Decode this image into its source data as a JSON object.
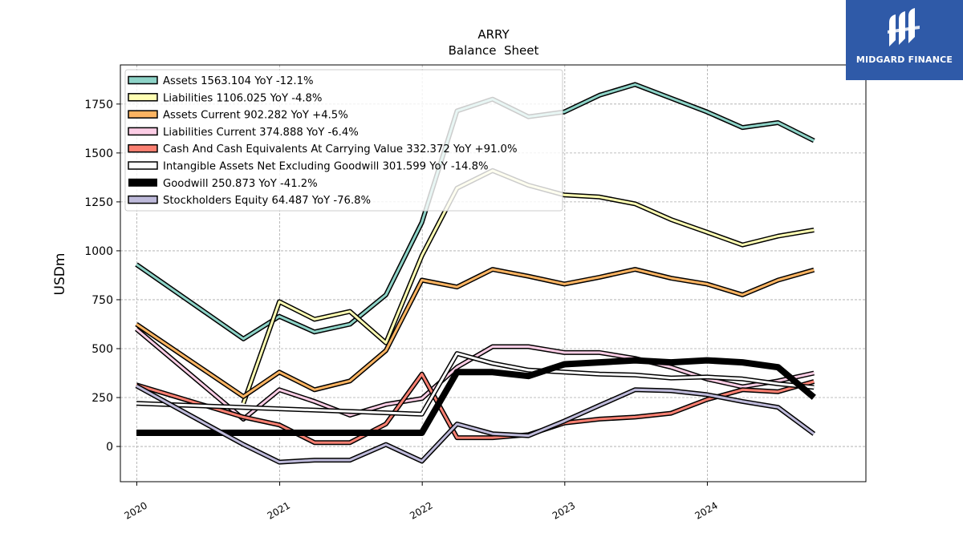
{
  "chart_data": {
    "type": "line",
    "title": "ARRY",
    "subtitle": "Balance  Sheet",
    "ylabel": "USDm",
    "xlabel": "",
    "xlim": [
      "2019-11-20",
      "2025-02-10"
    ],
    "ylim": [
      -180,
      1950
    ],
    "y_ticks": [
      0,
      250,
      500,
      750,
      1000,
      1250,
      1500,
      1750
    ],
    "x_ticks": [
      {
        "date": "2020-01-01",
        "label": "2020"
      },
      {
        "date": "2021-01-01",
        "label": "2021"
      },
      {
        "date": "2022-01-01",
        "label": "2022"
      },
      {
        "date": "2023-01-01",
        "label": "2023"
      },
      {
        "date": "2024-01-01",
        "label": "2024"
      }
    ],
    "grid": true,
    "legend_position": "top-left",
    "series": [
      {
        "name": "Assets",
        "legend": "Assets  1563.104 YoY -12.1%",
        "color": "#8dd3c7",
        "width": 3,
        "points": [
          [
            "2019-12-31",
            930
          ],
          [
            "2020-09-30",
            550
          ],
          [
            "2020-12-31",
            665
          ],
          [
            "2021-03-31",
            585
          ],
          [
            "2021-06-30",
            625
          ],
          [
            "2021-09-30",
            775
          ],
          [
            "2021-12-31",
            1145
          ],
          [
            "2022-03-31",
            1715
          ],
          [
            "2022-06-30",
            1775
          ],
          [
            "2022-09-30",
            1685
          ],
          [
            "2022-12-31",
            1710
          ],
          [
            "2023-03-31",
            1795
          ],
          [
            "2023-06-30",
            1850
          ],
          [
            "2023-09-30",
            1780
          ],
          [
            "2023-12-31",
            1710
          ],
          [
            "2024-03-31",
            1630
          ],
          [
            "2024-06-30",
            1655
          ],
          [
            "2024-09-30",
            1563
          ]
        ]
      },
      {
        "name": "Liabilities",
        "legend": "Liabilities  1106.025 YoY -4.8%",
        "color": "#ffffb3",
        "width": 3,
        "points": [
          [
            "2020-09-30",
            220
          ],
          [
            "2020-12-31",
            740
          ],
          [
            "2021-03-31",
            650
          ],
          [
            "2021-06-30",
            690
          ],
          [
            "2021-09-30",
            530
          ],
          [
            "2021-12-31",
            975
          ],
          [
            "2022-03-31",
            1320
          ],
          [
            "2022-06-30",
            1410
          ],
          [
            "2022-09-30",
            1335
          ],
          [
            "2022-12-31",
            1285
          ],
          [
            "2023-03-31",
            1275
          ],
          [
            "2023-06-30",
            1240
          ],
          [
            "2023-09-30",
            1160
          ],
          [
            "2023-12-31",
            1095
          ],
          [
            "2024-03-31",
            1030
          ],
          [
            "2024-06-30",
            1075
          ],
          [
            "2024-09-30",
            1106
          ]
        ]
      },
      {
        "name": "Assets Current",
        "legend": "Assets Current  902.282 YoY +4.5%",
        "color": "#fdb462",
        "width": 3,
        "points": [
          [
            "2019-12-31",
            625
          ],
          [
            "2020-09-30",
            255
          ],
          [
            "2020-12-31",
            380
          ],
          [
            "2021-03-31",
            290
          ],
          [
            "2021-06-30",
            335
          ],
          [
            "2021-09-30",
            490
          ],
          [
            "2021-12-31",
            850
          ],
          [
            "2022-03-31",
            815
          ],
          [
            "2022-06-30",
            905
          ],
          [
            "2022-09-30",
            870
          ],
          [
            "2022-12-31",
            830
          ],
          [
            "2023-03-31",
            865
          ],
          [
            "2023-06-30",
            905
          ],
          [
            "2023-09-30",
            860
          ],
          [
            "2023-12-31",
            830
          ],
          [
            "2024-03-31",
            775
          ],
          [
            "2024-06-30",
            850
          ],
          [
            "2024-09-30",
            902
          ]
        ]
      },
      {
        "name": "Liabilities Current",
        "legend": "Liabilities Current  374.888 YoY -6.4%",
        "color": "#fccde5",
        "width": 3,
        "points": [
          [
            "2019-12-31",
            600
          ],
          [
            "2020-09-30",
            140
          ],
          [
            "2020-12-31",
            290
          ],
          [
            "2021-03-31",
            230
          ],
          [
            "2021-06-30",
            160
          ],
          [
            "2021-09-30",
            215
          ],
          [
            "2021-12-31",
            245
          ],
          [
            "2022-03-31",
            405
          ],
          [
            "2022-06-30",
            510
          ],
          [
            "2022-09-30",
            510
          ],
          [
            "2022-12-31",
            480
          ],
          [
            "2023-03-31",
            480
          ],
          [
            "2023-06-30",
            450
          ],
          [
            "2023-09-30",
            405
          ],
          [
            "2023-12-31",
            345
          ],
          [
            "2024-03-31",
            305
          ],
          [
            "2024-06-30",
            335
          ],
          [
            "2024-09-30",
            375
          ]
        ]
      },
      {
        "name": "Cash And Cash Equivalents At Carrying Value",
        "legend": "Cash And Cash Equivalents At Carrying Value  332.372 YoY +91.0%",
        "color": "#fb8072",
        "width": 3,
        "points": [
          [
            "2019-12-31",
            315
          ],
          [
            "2020-09-30",
            150
          ],
          [
            "2020-12-31",
            110
          ],
          [
            "2021-03-31",
            20
          ],
          [
            "2021-06-30",
            20
          ],
          [
            "2021-09-30",
            115
          ],
          [
            "2021-12-31",
            370
          ],
          [
            "2022-03-31",
            45
          ],
          [
            "2022-06-30",
            45
          ],
          [
            "2022-09-30",
            60
          ],
          [
            "2022-12-31",
            120
          ],
          [
            "2023-03-31",
            140
          ],
          [
            "2023-06-30",
            150
          ],
          [
            "2023-09-30",
            170
          ],
          [
            "2023-12-31",
            240
          ],
          [
            "2024-03-31",
            290
          ],
          [
            "2024-06-30",
            280
          ],
          [
            "2024-09-30",
            332
          ]
        ]
      },
      {
        "name": "Intangible Assets Net Excluding Goodwill",
        "legend": "Intangible Assets Net Excluding Goodwill  301.599 YoY -14.8%",
        "color": "#ffffff",
        "width": 3,
        "points": [
          [
            "2019-12-31",
            220
          ],
          [
            "2021-12-31",
            165
          ],
          [
            "2022-03-31",
            475
          ],
          [
            "2022-06-30",
            425
          ],
          [
            "2022-09-30",
            390
          ],
          [
            "2022-12-31",
            380
          ],
          [
            "2023-03-31",
            370
          ],
          [
            "2023-06-30",
            365
          ],
          [
            "2023-09-30",
            350
          ],
          [
            "2023-12-31",
            355
          ],
          [
            "2024-03-31",
            345
          ],
          [
            "2024-06-30",
            320
          ],
          [
            "2024-09-30",
            302
          ]
        ]
      },
      {
        "name": "Goodwill",
        "legend": "Goodwill  250.873 YoY -41.2%",
        "color": "#000000",
        "width": 8,
        "points": [
          [
            "2019-12-31",
            70
          ],
          [
            "2021-12-31",
            70
          ],
          [
            "2022-03-31",
            380
          ],
          [
            "2022-06-30",
            380
          ],
          [
            "2022-09-30",
            360
          ],
          [
            "2022-12-31",
            420
          ],
          [
            "2023-03-31",
            430
          ],
          [
            "2023-06-30",
            440
          ],
          [
            "2023-09-30",
            430
          ],
          [
            "2023-12-31",
            440
          ],
          [
            "2024-03-31",
            430
          ],
          [
            "2024-06-30",
            405
          ],
          [
            "2024-09-30",
            251
          ]
        ]
      },
      {
        "name": "Stockholders Equity",
        "legend": "Stockholders Equity  64.487 YoY -76.8%",
        "color": "#bebada",
        "width": 3,
        "points": [
          [
            "2019-12-31",
            310
          ],
          [
            "2020-09-30",
            10
          ],
          [
            "2020-12-31",
            -80
          ],
          [
            "2021-03-31",
            -70
          ],
          [
            "2021-06-30",
            -70
          ],
          [
            "2021-09-30",
            10
          ],
          [
            "2021-12-31",
            -75
          ],
          [
            "2022-03-31",
            115
          ],
          [
            "2022-06-30",
            65
          ],
          [
            "2022-09-30",
            55
          ],
          [
            "2022-12-31",
            130
          ],
          [
            "2023-03-31",
            210
          ],
          [
            "2023-06-30",
            290
          ],
          [
            "2023-09-30",
            285
          ],
          [
            "2023-12-31",
            265
          ],
          [
            "2024-03-31",
            230
          ],
          [
            "2024-06-30",
            200
          ],
          [
            "2024-09-30",
            64
          ]
        ]
      }
    ]
  },
  "logo": {
    "text": "MIDGARD FINANCE",
    "color": "#2f5aa8"
  }
}
